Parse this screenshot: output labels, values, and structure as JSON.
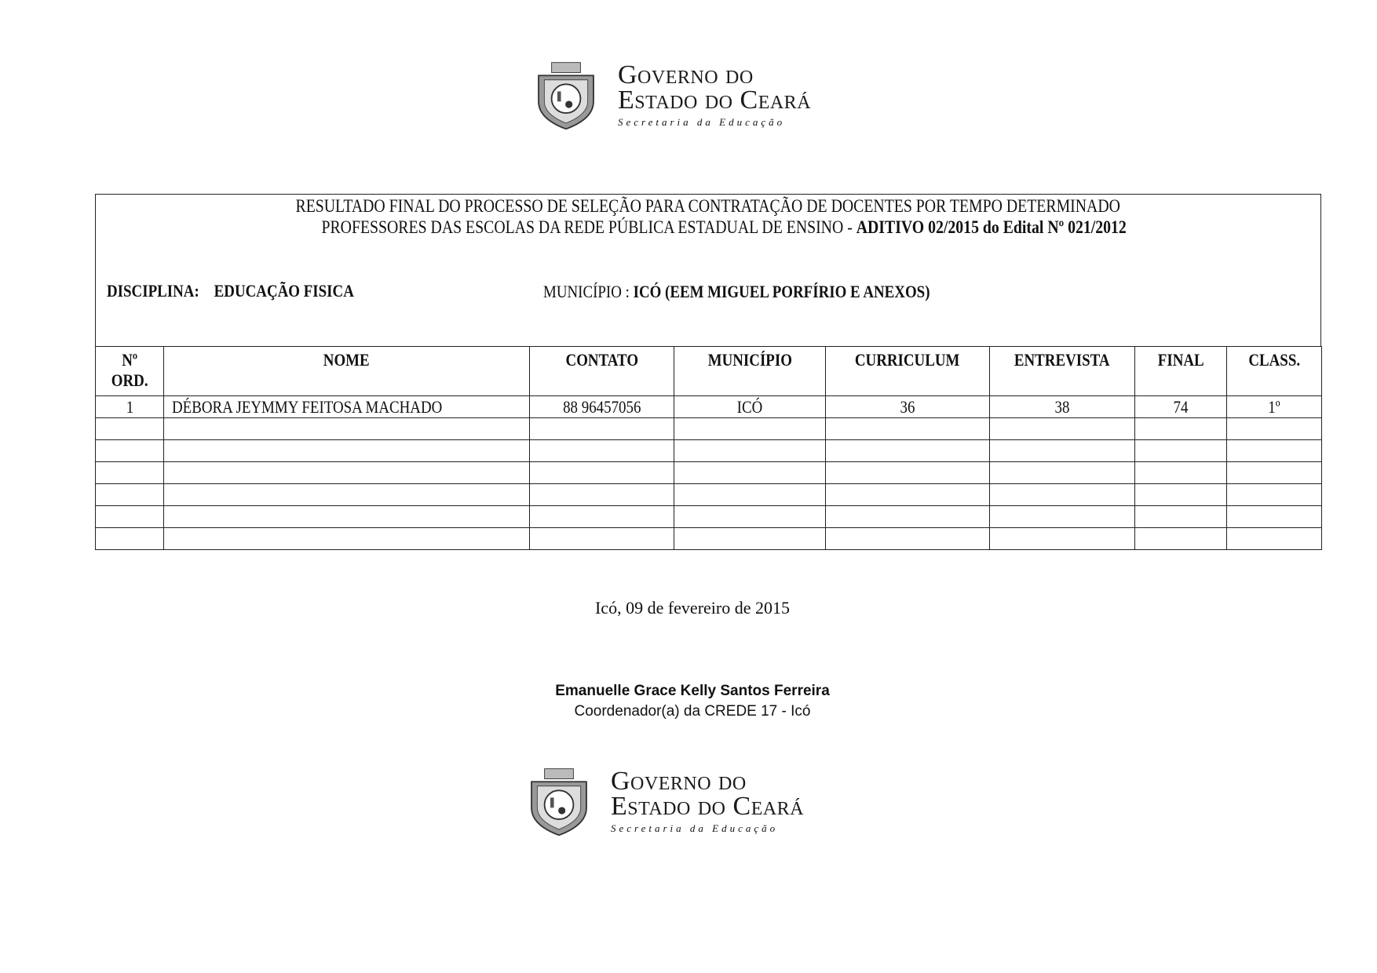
{
  "letterhead": {
    "line1": "Governo do",
    "line2": "Estado do Ceará",
    "line3": "Secretaria da Educação"
  },
  "title": {
    "line1": "RESULTADO FINAL DO PROCESSO DE SELEÇÃO PARA CONTRATAÇÃO DE DOCENTES POR TEMPO DETERMINADO",
    "line2_plain": "PROFESSORES DAS ESCOLAS DA REDE PÚBLICA ESTADUAL DE ENSINO  -  ",
    "line2_bold": "ADITIVO 02/2015 do Edital Nº 021/2012"
  },
  "disciplina": {
    "label": "DISCIPLINA:",
    "value": "EDUCAÇÃO  FISICA"
  },
  "municipio": {
    "label": "MUNICÍPIO : ",
    "value": "ICÓ (EEM MIGUEL PORFÍRIO E ANEXOS)"
  },
  "table": {
    "headers": [
      "Nº ORD.",
      "NOME",
      "CONTATO",
      "MUNICÍPIO",
      "CURRICULUM",
      "ENTREVISTA",
      "FINAL",
      "CLASS."
    ],
    "header_ord_line1": "Nº",
    "header_ord_line2": "ORD.",
    "rows": [
      [
        "1",
        "DÉBORA JEYMMY FEITOSA MACHADO",
        "88 96457056",
        "ICÓ",
        "36",
        "38",
        "74",
        "1º"
      ]
    ]
  },
  "date": "Icó, 09 de fevereiro de 2015",
  "signature": {
    "name": "Emanuelle Grace Kelly Santos Ferreira",
    "role": "Coordenador(a) da CREDE 17 - Icó"
  },
  "icons": {
    "crest": "ceara-coat-of-arms-icon"
  }
}
